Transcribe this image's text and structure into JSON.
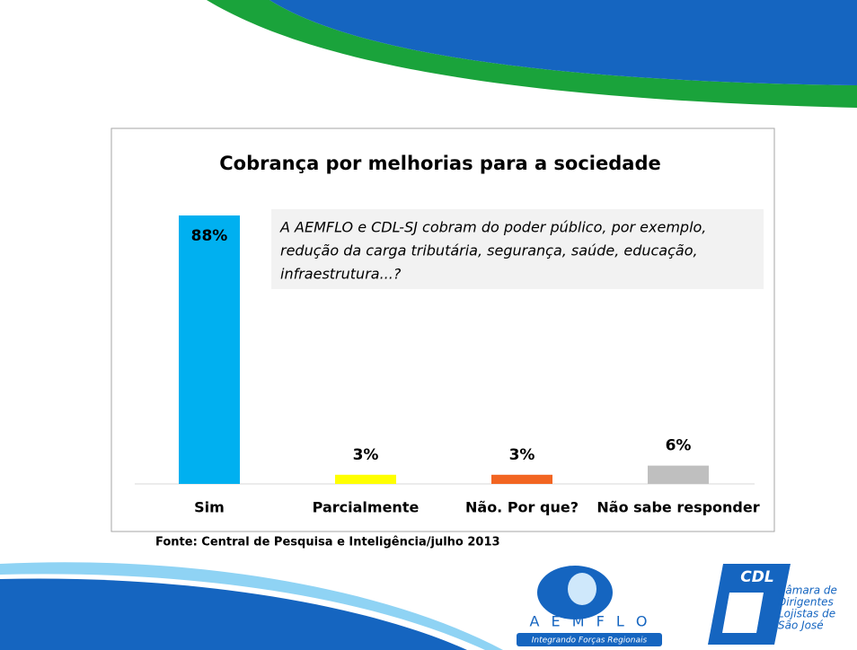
{
  "chart_data": {
    "type": "bar",
    "title": "Cobrança por melhorias para a sociedade",
    "categories": [
      "Sim",
      "Parcialmente",
      "Não. Por que?",
      "Não sabe responder"
    ],
    "values": [
      88,
      3,
      3,
      6
    ],
    "value_labels": [
      "88%",
      "3%",
      "3%",
      "6%"
    ],
    "colors": [
      "#00b0f0",
      "#ffff00",
      "#f26522",
      "#bfbfbf"
    ],
    "annotation": [
      "A AEMFLO e CDL-SJ cobram do poder público, por exemplo,",
      "redução da carga tributária, segurança, saúde, educação,",
      "infraestrutura...?"
    ],
    "source": "Fonte: Central de Pesquisa e Inteligência/julho 2013"
  },
  "logos": {
    "aemflo": "A E M F L O",
    "aemflo_tagline": "Integrando Forças Regionais",
    "cdl": "CDL",
    "cdl_name": [
      "Câmara de",
      "Dirigentes",
      "Lojistas de",
      "São José"
    ]
  }
}
